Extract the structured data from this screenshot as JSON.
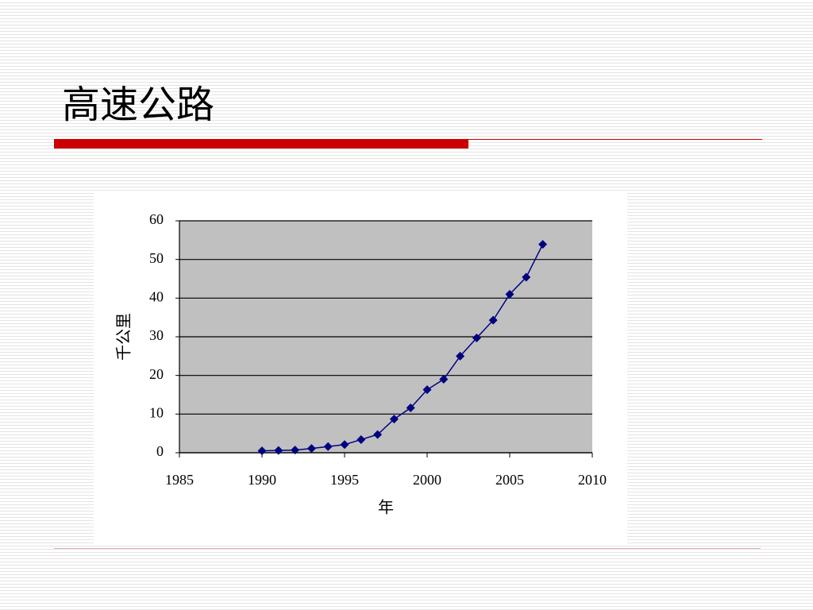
{
  "title": "高速公路",
  "chart_data": {
    "type": "line",
    "x": [
      1990,
      1991,
      1992,
      1993,
      1994,
      1995,
      1996,
      1997,
      1998,
      1999,
      2000,
      2001,
      2002,
      2003,
      2004,
      2005,
      2006,
      2007
    ],
    "values": [
      0.5,
      0.6,
      0.7,
      1.1,
      1.6,
      2.1,
      3.4,
      4.7,
      8.7,
      11.6,
      16.3,
      19.0,
      25.0,
      29.7,
      34.3,
      41.0,
      45.4,
      53.9
    ],
    "color": "#000080",
    "xlim": [
      1985,
      2010
    ],
    "xticks": [
      1985,
      1990,
      1995,
      2000,
      2005,
      2010
    ],
    "ylim": [
      0,
      60
    ],
    "yticks": [
      0,
      10,
      20,
      30,
      40,
      50,
      60
    ],
    "xlabel": "年",
    "ylabel": "千公里",
    "grid": true,
    "marker": "diamond"
  }
}
